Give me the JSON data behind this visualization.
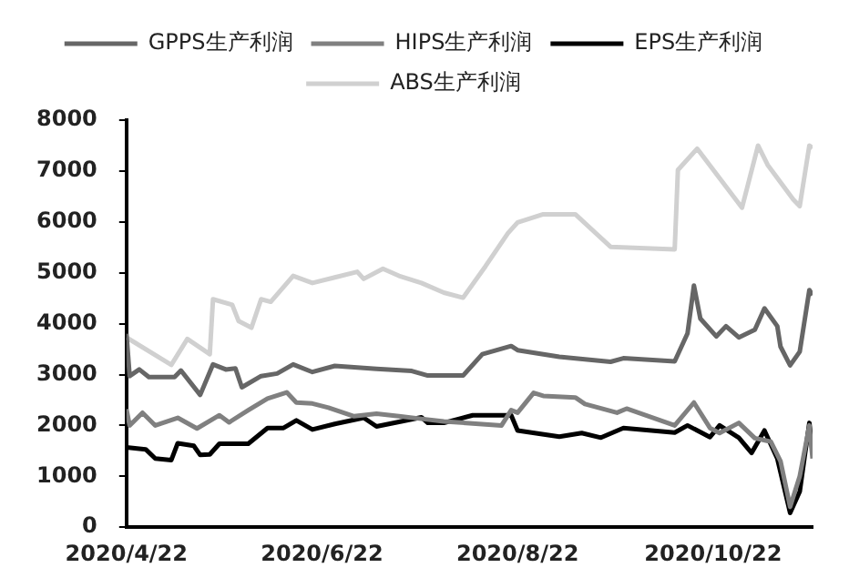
{
  "chart_data": {
    "type": "line",
    "xlim": [
      "2020-04-22",
      "2020-11-22"
    ],
    "xticks": [
      {
        "value": "2020-04-22",
        "label": "2020/4/22"
      },
      {
        "value": "2020-06-22",
        "label": "2020/6/22"
      },
      {
        "value": "2020-08-22",
        "label": "2020/8/22"
      },
      {
        "value": "2020-10-22",
        "label": "2020/10/22"
      }
    ],
    "ylim": [
      0,
      8000
    ],
    "yticks": [
      0,
      1000,
      2000,
      3000,
      4000,
      5000,
      6000,
      7000,
      8000
    ],
    "grid": false,
    "legend": "top",
    "marker": "none",
    "line_style": "solid",
    "series": [
      {
        "name": "GPPS生产利润",
        "color": "#666666",
        "x": [
          "2020-04-22",
          "2020-04-23",
          "2020-04-26",
          "2020-04-29",
          "2020-05-07",
          "2020-05-09",
          "2020-05-15",
          "2020-05-19",
          "2020-05-23",
          "2020-05-26",
          "2020-05-28",
          "2020-06-03",
          "2020-06-08",
          "2020-06-13",
          "2020-06-19",
          "2020-06-26",
          "2020-07-09",
          "2020-07-20",
          "2020-07-25",
          "2020-07-30",
          "2020-08-05",
          "2020-08-11",
          "2020-08-20",
          "2020-08-22",
          "2020-09-04",
          "2020-09-20",
          "2020-09-24",
          "2020-10-10",
          "2020-10-14",
          "2020-10-16",
          "2020-10-18",
          "2020-10-23",
          "2020-10-26",
          "2020-10-30",
          "2020-11-04",
          "2020-11-07",
          "2020-11-11",
          "2020-11-12",
          "2020-11-15",
          "2020-11-18",
          "2020-11-21",
          "2020-11-22"
        ],
        "values": [
          3800,
          2970,
          3100,
          2950,
          2950,
          3080,
          2600,
          3200,
          3100,
          3120,
          2750,
          2970,
          3020,
          3200,
          3050,
          3170,
          3110,
          3070,
          2980,
          2980,
          2980,
          3400,
          3560,
          3480,
          3350,
          3250,
          3320,
          3260,
          3810,
          4750,
          4100,
          3750,
          3950,
          3730,
          3880,
          4300,
          3950,
          3550,
          3180,
          3450,
          4660,
          4560
        ]
      },
      {
        "name": "HIPS生产利润",
        "color": "#808080",
        "x": [
          "2020-04-22",
          "2020-04-23",
          "2020-04-27",
          "2020-05-01",
          "2020-05-08",
          "2020-05-14",
          "2020-05-21",
          "2020-05-24",
          "2020-05-30",
          "2020-06-05",
          "2020-06-11",
          "2020-06-14",
          "2020-06-19",
          "2020-06-24",
          "2020-07-02",
          "2020-07-09",
          "2020-07-16",
          "2020-07-23",
          "2020-07-30",
          "2020-08-17",
          "2020-08-20",
          "2020-08-22",
          "2020-08-27",
          "2020-08-30",
          "2020-09-09",
          "2020-09-12",
          "2020-09-22",
          "2020-09-25",
          "2020-10-10",
          "2020-10-16",
          "2020-10-21",
          "2020-10-24",
          "2020-10-30",
          "2020-11-04",
          "2020-11-09",
          "2020-11-12",
          "2020-11-15",
          "2020-11-18",
          "2020-11-21",
          "2020-11-22"
        ],
        "values": [
          2320,
          2000,
          2250,
          2000,
          2150,
          1940,
          2200,
          2060,
          2300,
          2530,
          2650,
          2450,
          2430,
          2350,
          2180,
          2230,
          2180,
          2130,
          2080,
          2000,
          2300,
          2250,
          2640,
          2580,
          2550,
          2420,
          2250,
          2330,
          2000,
          2450,
          1950,
          1850,
          2050,
          1750,
          1680,
          1300,
          400,
          1000,
          2000,
          1350
        ]
      },
      {
        "name": "EPS生产利润",
        "color": "#000000",
        "x": [
          "2020-04-22",
          "2020-04-28",
          "2020-05-01",
          "2020-05-06",
          "2020-05-08",
          "2020-05-13",
          "2020-05-15",
          "2020-05-18",
          "2020-05-21",
          "2020-05-30",
          "2020-06-05",
          "2020-06-10",
          "2020-06-14",
          "2020-06-19",
          "2020-06-26",
          "2020-07-05",
          "2020-07-09",
          "2020-07-16",
          "2020-07-23",
          "2020-07-25",
          "2020-07-30",
          "2020-08-08",
          "2020-08-20",
          "2020-08-22",
          "2020-09-04",
          "2020-09-11",
          "2020-09-17",
          "2020-09-24",
          "2020-10-10",
          "2020-10-14",
          "2020-10-21",
          "2020-10-24",
          "2020-10-30",
          "2020-11-03",
          "2020-11-07",
          "2020-11-11",
          "2020-11-15",
          "2020-11-18",
          "2020-11-21",
          "2020-11-22"
        ],
        "values": [
          1570,
          1530,
          1350,
          1320,
          1650,
          1600,
          1420,
          1430,
          1640,
          1640,
          1950,
          1950,
          2100,
          1920,
          2030,
          2150,
          1980,
          2070,
          2160,
          2050,
          2050,
          2200,
          2200,
          1900,
          1780,
          1850,
          1760,
          1950,
          1860,
          2000,
          1770,
          2000,
          1760,
          1460,
          1900,
          1350,
          280,
          700,
          2050,
          1460
        ]
      },
      {
        "name": "ABS生产利润",
        "color": "#d0d0d0",
        "x": [
          "2020-04-22",
          "2020-05-06",
          "2020-05-11",
          "2020-05-18",
          "2020-05-19",
          "2020-05-25",
          "2020-05-27",
          "2020-05-31",
          "2020-06-03",
          "2020-06-06",
          "2020-06-13",
          "2020-06-19",
          "2020-06-26",
          "2020-07-03",
          "2020-07-05",
          "2020-07-11",
          "2020-07-16",
          "2020-07-23",
          "2020-07-30",
          "2020-08-05",
          "2020-08-12",
          "2020-08-19",
          "2020-08-22",
          "2020-08-30",
          "2020-09-09",
          "2020-09-20",
          "2020-10-10",
          "2020-10-11",
          "2020-10-17",
          "2020-10-31",
          "2020-11-05",
          "2020-11-08",
          "2020-11-16",
          "2020-11-18",
          "2020-11-21",
          "2020-11-22"
        ],
        "values": [
          3730,
          3190,
          3700,
          3400,
          4480,
          4370,
          4050,
          3920,
          4480,
          4430,
          4940,
          4800,
          4910,
          5020,
          4880,
          5080,
          4940,
          4800,
          4610,
          4510,
          5130,
          5780,
          5990,
          6150,
          6150,
          5510,
          5460,
          7020,
          7440,
          6280,
          7500,
          7120,
          6440,
          6310,
          7500,
          7450
        ]
      }
    ]
  }
}
